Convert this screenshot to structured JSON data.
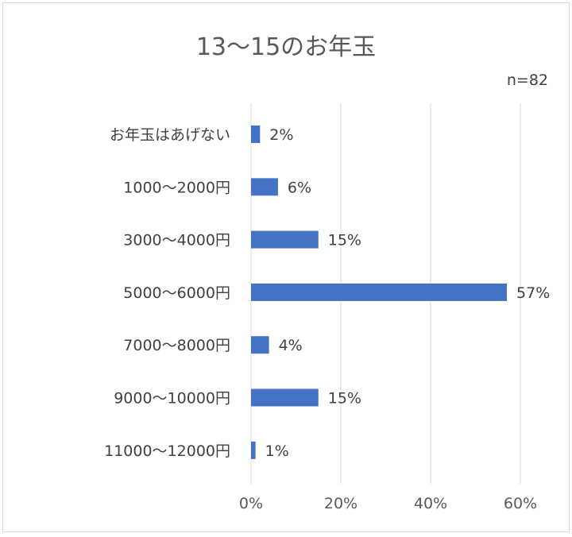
{
  "chart_data": {
    "type": "bar",
    "orientation": "horizontal",
    "title": "13～15のお年玉",
    "annotation": "n=82",
    "categories": [
      "お年玉はあげない",
      "1000～2000円",
      "3000～4000円",
      "5000～6000円",
      "7000～8000円",
      "9000～10000円",
      "11000～12000円"
    ],
    "values": [
      2,
      6,
      15,
      57,
      4,
      15,
      1
    ],
    "data_labels": [
      "2%",
      "6%",
      "15%",
      "57%",
      "4%",
      "15%",
      "1%"
    ],
    "xticks": [
      "0%",
      "20%",
      "40%",
      "60%"
    ],
    "xlim": [
      0,
      60
    ],
    "grid": true,
    "bar_color": "#4472c4"
  }
}
